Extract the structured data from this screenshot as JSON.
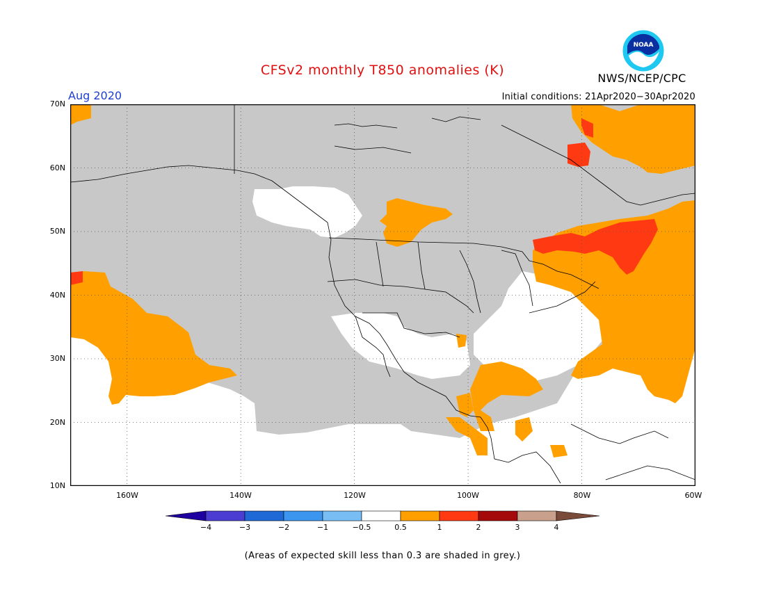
{
  "header": {
    "title": "CFSv2 monthly T850 anomalies (K)",
    "agency": "NWS/NCEP/CPC",
    "logo_text": "NOAA",
    "month": "Aug 2020",
    "initial_conditions": "Initial conditions: 21Apr2020−30Apr2020"
  },
  "map": {
    "lat_labels": [
      "70N",
      "60N",
      "50N",
      "40N",
      "30N",
      "20N",
      "10N"
    ],
    "lon_labels": [
      "160W",
      "140W",
      "120W",
      "100W",
      "80W",
      "60W"
    ],
    "colors": {
      "grey": "#c8c8c8",
      "white": "#ffffff",
      "orange": "#ff9f00",
      "red_orange": "#ff3a12"
    }
  },
  "colorbar": {
    "labels": [
      "−4",
      "−3",
      "−2",
      "−1",
      "−0.5",
      "0.5",
      "1",
      "2",
      "3",
      "4"
    ],
    "colors": [
      "#1f00a0",
      "#4b3dd2",
      "#1f69d6",
      "#3c96f0",
      "#78bef5",
      "#ffffff",
      "#ff9f00",
      "#ff3a12",
      "#a50a0a",
      "#c8a08c",
      "#7a4a3a"
    ]
  },
  "footer": {
    "note": "(Areas of expected skill less than 0.3 are shaded in grey.)"
  }
}
